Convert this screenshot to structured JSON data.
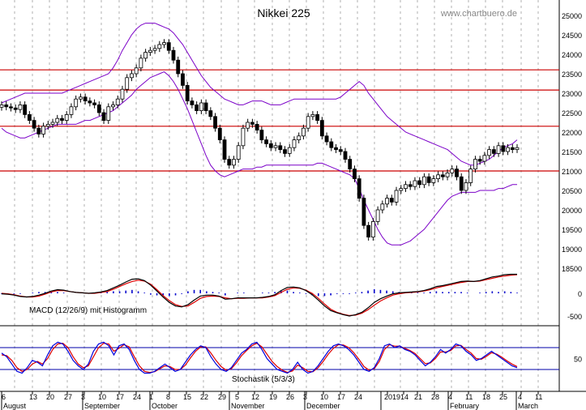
{
  "chart_data": [
    {
      "type": "candlestick",
      "title": "Nikkei 225",
      "watermark": "www.chartbuero.de",
      "ylim": [
        18000,
        25200
      ],
      "yticks": [
        18500,
        19000,
        19500,
        20000,
        20500,
        21000,
        21500,
        22000,
        22500,
        23000,
        23500,
        24000,
        24500,
        25000
      ],
      "resistance_lines": [
        23600,
        23080,
        22150,
        21000
      ],
      "colors": {
        "candle": "#000000",
        "bollinger": "#7b00c8",
        "support": "#cc0000"
      },
      "closes": [
        22700,
        22650,
        22620,
        22580,
        22700,
        22450,
        22300,
        22100,
        21950,
        22150,
        22200,
        22250,
        22350,
        22300,
        22450,
        22650,
        22850,
        22900,
        22800,
        22750,
        22700,
        22500,
        22300,
        22650,
        22700,
        22850,
        23100,
        23400,
        23500,
        23650,
        23900,
        24050,
        24100,
        24150,
        24250,
        24300,
        24100,
        23850,
        23500,
        23200,
        22800,
        22700,
        22550,
        22750,
        22550,
        22400,
        22100,
        21800,
        21300,
        21150,
        21300,
        21650,
        22100,
        22250,
        22200,
        22050,
        21800,
        21700,
        21600,
        21650,
        21550,
        21450,
        21600,
        21800,
        21900,
        22100,
        22400,
        22450,
        22300,
        21900,
        21750,
        21600,
        21550,
        21500,
        21300,
        21050,
        20800,
        20300,
        19600,
        19300,
        19700,
        20000,
        20150,
        20300,
        20200,
        20500,
        20550,
        20650,
        20600,
        20750,
        20650,
        20850,
        20700,
        20800,
        20900,
        20850,
        20950,
        21050,
        20850,
        20500,
        20700,
        21050,
        21300,
        21250,
        21400,
        21550,
        21450,
        21650,
        21500,
        21600,
        21550,
        21600
      ],
      "bollinger_upper": [
        22750,
        22800,
        22850,
        22900,
        22950,
        23000,
        23000,
        23000,
        23000,
        23000,
        23000,
        23000,
        23000,
        23000,
        23050,
        23100,
        23150,
        23200,
        23250,
        23300,
        23350,
        23400,
        23450,
        23500,
        23650,
        23850,
        24100,
        24300,
        24500,
        24650,
        24750,
        24800,
        24800,
        24800,
        24750,
        24700,
        24650,
        24550,
        24400,
        24250,
        24050,
        23850,
        23650,
        23450,
        23300,
        23150,
        23050,
        22950,
        22850,
        22800,
        22750,
        22700,
        22700,
        22750,
        22800,
        22800,
        22800,
        22750,
        22700,
        22700,
        22700,
        22750,
        22800,
        22850,
        22850,
        22850,
        22850,
        22850,
        22850,
        22850,
        22850,
        22850,
        22850,
        22900,
        23000,
        23100,
        23200,
        23300,
        23200,
        23000,
        22850,
        22700,
        22550,
        22400,
        22300,
        22200,
        22100,
        22000,
        21950,
        21900,
        21850,
        21800,
        21750,
        21700,
        21650,
        21600,
        21550,
        21450,
        21350,
        21250,
        21200,
        21150,
        21150,
        21200,
        21250,
        21300,
        21400,
        21500,
        21600,
        21650,
        21700,
        21800
      ],
      "bollinger_lower": [
        22100,
        22000,
        21950,
        21900,
        21850,
        21850,
        21900,
        21950,
        22000,
        22050,
        22100,
        22150,
        22200,
        22200,
        22200,
        22200,
        22200,
        22250,
        22300,
        22300,
        22350,
        22400,
        22450,
        22500,
        22550,
        22650,
        22750,
        22850,
        22950,
        23100,
        23200,
        23300,
        23400,
        23450,
        23500,
        23550,
        23450,
        23300,
        23100,
        22850,
        22600,
        22300,
        22000,
        21700,
        21400,
        21150,
        21000,
        20900,
        20850,
        20900,
        20950,
        21000,
        21050,
        21050,
        21050,
        21100,
        21100,
        21150,
        21150,
        21150,
        21150,
        21150,
        21150,
        21150,
        21150,
        21150,
        21150,
        21150,
        21200,
        21200,
        21150,
        21100,
        21050,
        21000,
        20950,
        20900,
        20800,
        20550,
        20250,
        20000,
        19750,
        19500,
        19300,
        19150,
        19100,
        19100,
        19100,
        19150,
        19200,
        19300,
        19400,
        19500,
        19650,
        19800,
        19950,
        20100,
        20250,
        20350,
        20400,
        20450,
        20450,
        20450,
        20450,
        20500,
        20500,
        20500,
        20500,
        20550,
        20550,
        20600,
        20650,
        20650
      ]
    },
    {
      "type": "line",
      "label": "MACD (12/26/9) mit Histogramm",
      "yticks": [
        0,
        -500
      ],
      "ylim": [
        -650,
        450
      ],
      "colors": {
        "macd": "#000000",
        "signal": "#dd0000",
        "histogram": "#0000cc"
      },
      "macd": [
        -10,
        -20,
        -40,
        -70,
        -80,
        -70,
        -40,
        0,
        50,
        80,
        70,
        40,
        20,
        10,
        0,
        10,
        30,
        60,
        120,
        180,
        250,
        310,
        320,
        280,
        180,
        50,
        -80,
        -200,
        -280,
        -300,
        -250,
        -150,
        -60,
        -40,
        -40,
        -60,
        -130,
        -120,
        -100,
        -100,
        -100,
        -100,
        -90,
        -70,
        -30,
        60,
        130,
        140,
        120,
        60,
        -30,
        -150,
        -280,
        -380,
        -430,
        -470,
        -500,
        -470,
        -420,
        -320,
        -200,
        -120,
        -60,
        -10,
        10,
        20,
        30,
        40,
        60,
        100,
        150,
        170,
        200,
        230,
        260,
        270,
        260,
        280,
        320,
        360,
        380,
        410,
        420,
        420
      ],
      "signal": [
        0,
        -10,
        -30,
        -60,
        -80,
        -80,
        -60,
        -20,
        30,
        60,
        60,
        40,
        20,
        10,
        0,
        0,
        20,
        40,
        90,
        150,
        210,
        260,
        290,
        270,
        200,
        80,
        -50,
        -160,
        -250,
        -290,
        -280,
        -200,
        -110,
        -70,
        -60,
        -70,
        -100,
        -120,
        -110,
        -110,
        -100,
        -100,
        -100,
        -80,
        -50,
        20,
        90,
        120,
        110,
        70,
        0,
        -110,
        -240,
        -350,
        -420,
        -460,
        -490,
        -480,
        -440,
        -360,
        -260,
        -170,
        -100,
        -40,
        -10,
        10,
        20,
        30,
        50,
        80,
        120,
        150,
        180,
        210,
        240,
        260,
        260,
        270,
        300,
        330,
        360,
        380,
        400,
        410
      ]
    },
    {
      "type": "line",
      "label": "Stochastik (5/3/3)",
      "ytick": 50,
      "ylim": [
        0,
        100
      ],
      "reference_lines": [
        80,
        20
      ],
      "colors": {
        "k": "#0000dd",
        "d": "#dd0000",
        "reference": "#0000aa"
      },
      "k": [
        65,
        55,
        35,
        15,
        10,
        25,
        45,
        40,
        30,
        60,
        85,
        95,
        90,
        70,
        45,
        30,
        20,
        35,
        70,
        90,
        95,
        85,
        60,
        85,
        90,
        75,
        45,
        20,
        10,
        10,
        15,
        25,
        35,
        25,
        15,
        20,
        40,
        60,
        75,
        85,
        80,
        55,
        35,
        20,
        15,
        25,
        45,
        65,
        75,
        90,
        95,
        75,
        50,
        35,
        20,
        15,
        10,
        20,
        40,
        20,
        10,
        15,
        30,
        50,
        70,
        85,
        90,
        85,
        75,
        60,
        40,
        20,
        15,
        25,
        50,
        85,
        90,
        80,
        85,
        75,
        70,
        60,
        45,
        30,
        40,
        55,
        75,
        65,
        75,
        90,
        85,
        70,
        60,
        45,
        50,
        60,
        70,
        60,
        50,
        40,
        30,
        25
      ],
      "d": [
        60,
        58,
        45,
        25,
        15,
        20,
        35,
        42,
        35,
        50,
        75,
        90,
        92,
        80,
        55,
        35,
        25,
        30,
        55,
        80,
        92,
        90,
        70,
        78,
        88,
        82,
        55,
        30,
        15,
        12,
        14,
        22,
        30,
        28,
        20,
        20,
        32,
        52,
        70,
        82,
        82,
        65,
        45,
        28,
        18,
        22,
        38,
        58,
        72,
        85,
        92,
        82,
        62,
        42,
        28,
        18,
        12,
        16,
        32,
        25,
        15,
        14,
        25,
        42,
        62,
        78,
        88,
        87,
        80,
        66,
        48,
        28,
        18,
        22,
        42,
        75,
        88,
        84,
        84,
        78,
        72,
        64,
        50,
        36,
        38,
        50,
        68,
        68,
        72,
        85,
        86,
        75,
        65,
        50,
        48,
        56,
        66,
        62,
        54,
        44,
        35,
        28
      ]
    }
  ],
  "x_axis": {
    "day_labels": [
      "6",
      "13",
      "20",
      "27",
      "3",
      "10",
      "17",
      "24",
      "1",
      "8",
      "15",
      "22",
      "29",
      "5",
      "12",
      "19",
      "26",
      "3",
      "10",
      "17",
      "24",
      "2019",
      "14",
      "21",
      "28",
      "4",
      "11",
      "18",
      "25",
      "4",
      "11"
    ],
    "month_labels": [
      "August",
      "September",
      "October",
      "November",
      "December",
      "2019",
      "February",
      "March"
    ]
  }
}
